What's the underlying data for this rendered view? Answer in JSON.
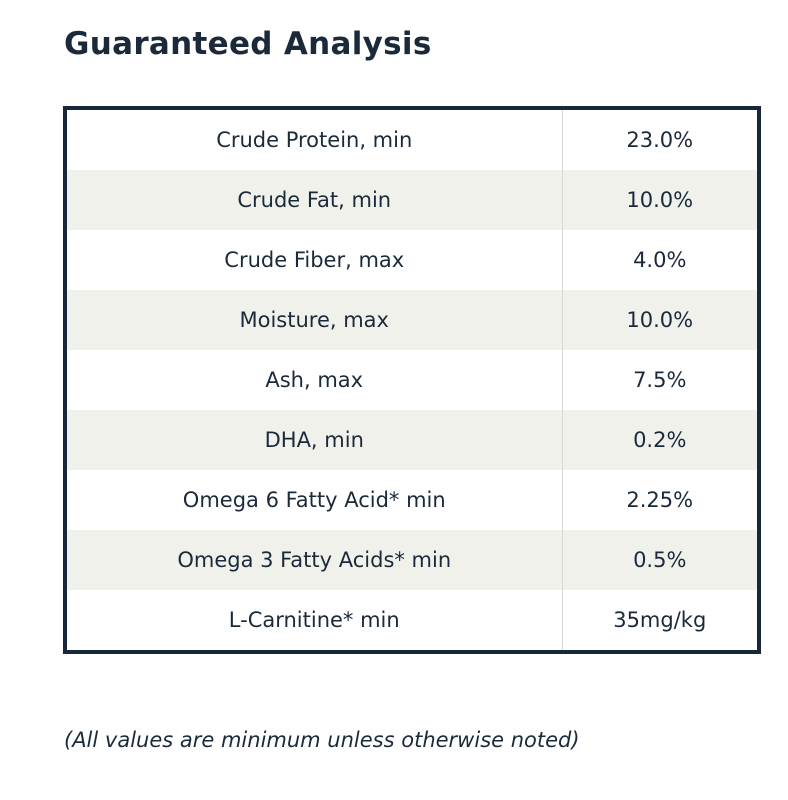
{
  "title": "Guaranteed Analysis",
  "rows": [
    {
      "name": "Crude Protein, min",
      "value": "23.0%"
    },
    {
      "name": "Crude Fat, min",
      "value": "10.0%"
    },
    {
      "name": "Crude Fiber, max",
      "value": "4.0%"
    },
    {
      "name": "Moisture, max",
      "value": "10.0%"
    },
    {
      "name": "Ash, max",
      "value": "7.5%"
    },
    {
      "name": "DHA, min",
      "value": "0.2%"
    },
    {
      "name": "Omega 6 Fatty Acid* min",
      "value": "2.25%"
    },
    {
      "name": "Omega 3 Fatty Acids* min",
      "value": "0.5%"
    },
    {
      "name": "L-Carnitine* min",
      "value": "35mg/kg"
    }
  ],
  "footnote": "(All values are minimum unless otherwise noted)",
  "colors": {
    "text": "#1b2a3a",
    "border": "#16283a",
    "row_shade": "#f1f1ec"
  }
}
